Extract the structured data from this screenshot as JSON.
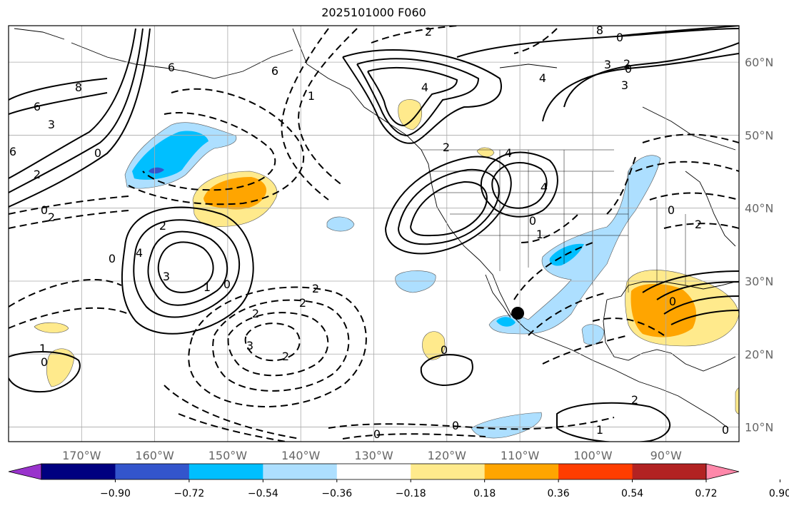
{
  "title": "2025101000 F060",
  "map": {
    "projection": "cylindrical",
    "extent_lon": [
      -180,
      -80
    ],
    "extent_lat": [
      8,
      65
    ],
    "gridlines": true,
    "lat_labels": [
      "60°N",
      "50°N",
      "40°N",
      "30°N",
      "20°N",
      "10°N"
    ],
    "lat_values": [
      60,
      50,
      40,
      30,
      20,
      10
    ],
    "lon_labels": [
      "170°W",
      "160°W",
      "150°W",
      "140°W",
      "130°W",
      "120°W",
      "110°W",
      "100°W",
      "90°W"
    ],
    "lon_values": [
      -170,
      -160,
      -150,
      -140,
      -130,
      -120,
      -110,
      -100,
      -90
    ],
    "marker": {
      "lon": -110.3,
      "lat": 25.6,
      "name": "point-marker"
    }
  },
  "colorbar": {
    "orientation": "horizontal",
    "extend": "both",
    "tick_labels": [
      "−0.90",
      "−0.72",
      "−0.54",
      "−0.36",
      "−0.18",
      "0.18",
      "0.36",
      "0.54",
      "0.72",
      "0.90"
    ],
    "colors": [
      "#9933cc",
      "#000080",
      "#3355cc",
      "#00bfff",
      "#addfff",
      "#ffffff",
      "#ffea8c",
      "#ffa500",
      "#ff3d00",
      "#b22222",
      "#ff88aa"
    ]
  },
  "contour_labels": [
    "2",
    "6",
    "4",
    "2",
    "4",
    "6",
    "8",
    "3",
    "2",
    "4",
    "3",
    "4",
    "2",
    "3",
    "2",
    "0",
    "1",
    "0",
    "2",
    "6",
    "8",
    "6",
    "3",
    "4",
    "2",
    "2",
    "2",
    "2",
    "3",
    "0",
    "1",
    "0",
    "2",
    "0",
    "0",
    "0",
    "1",
    "2",
    "0",
    "1",
    "0",
    "0",
    "0",
    "1",
    "0",
    "0",
    "0"
  ]
}
